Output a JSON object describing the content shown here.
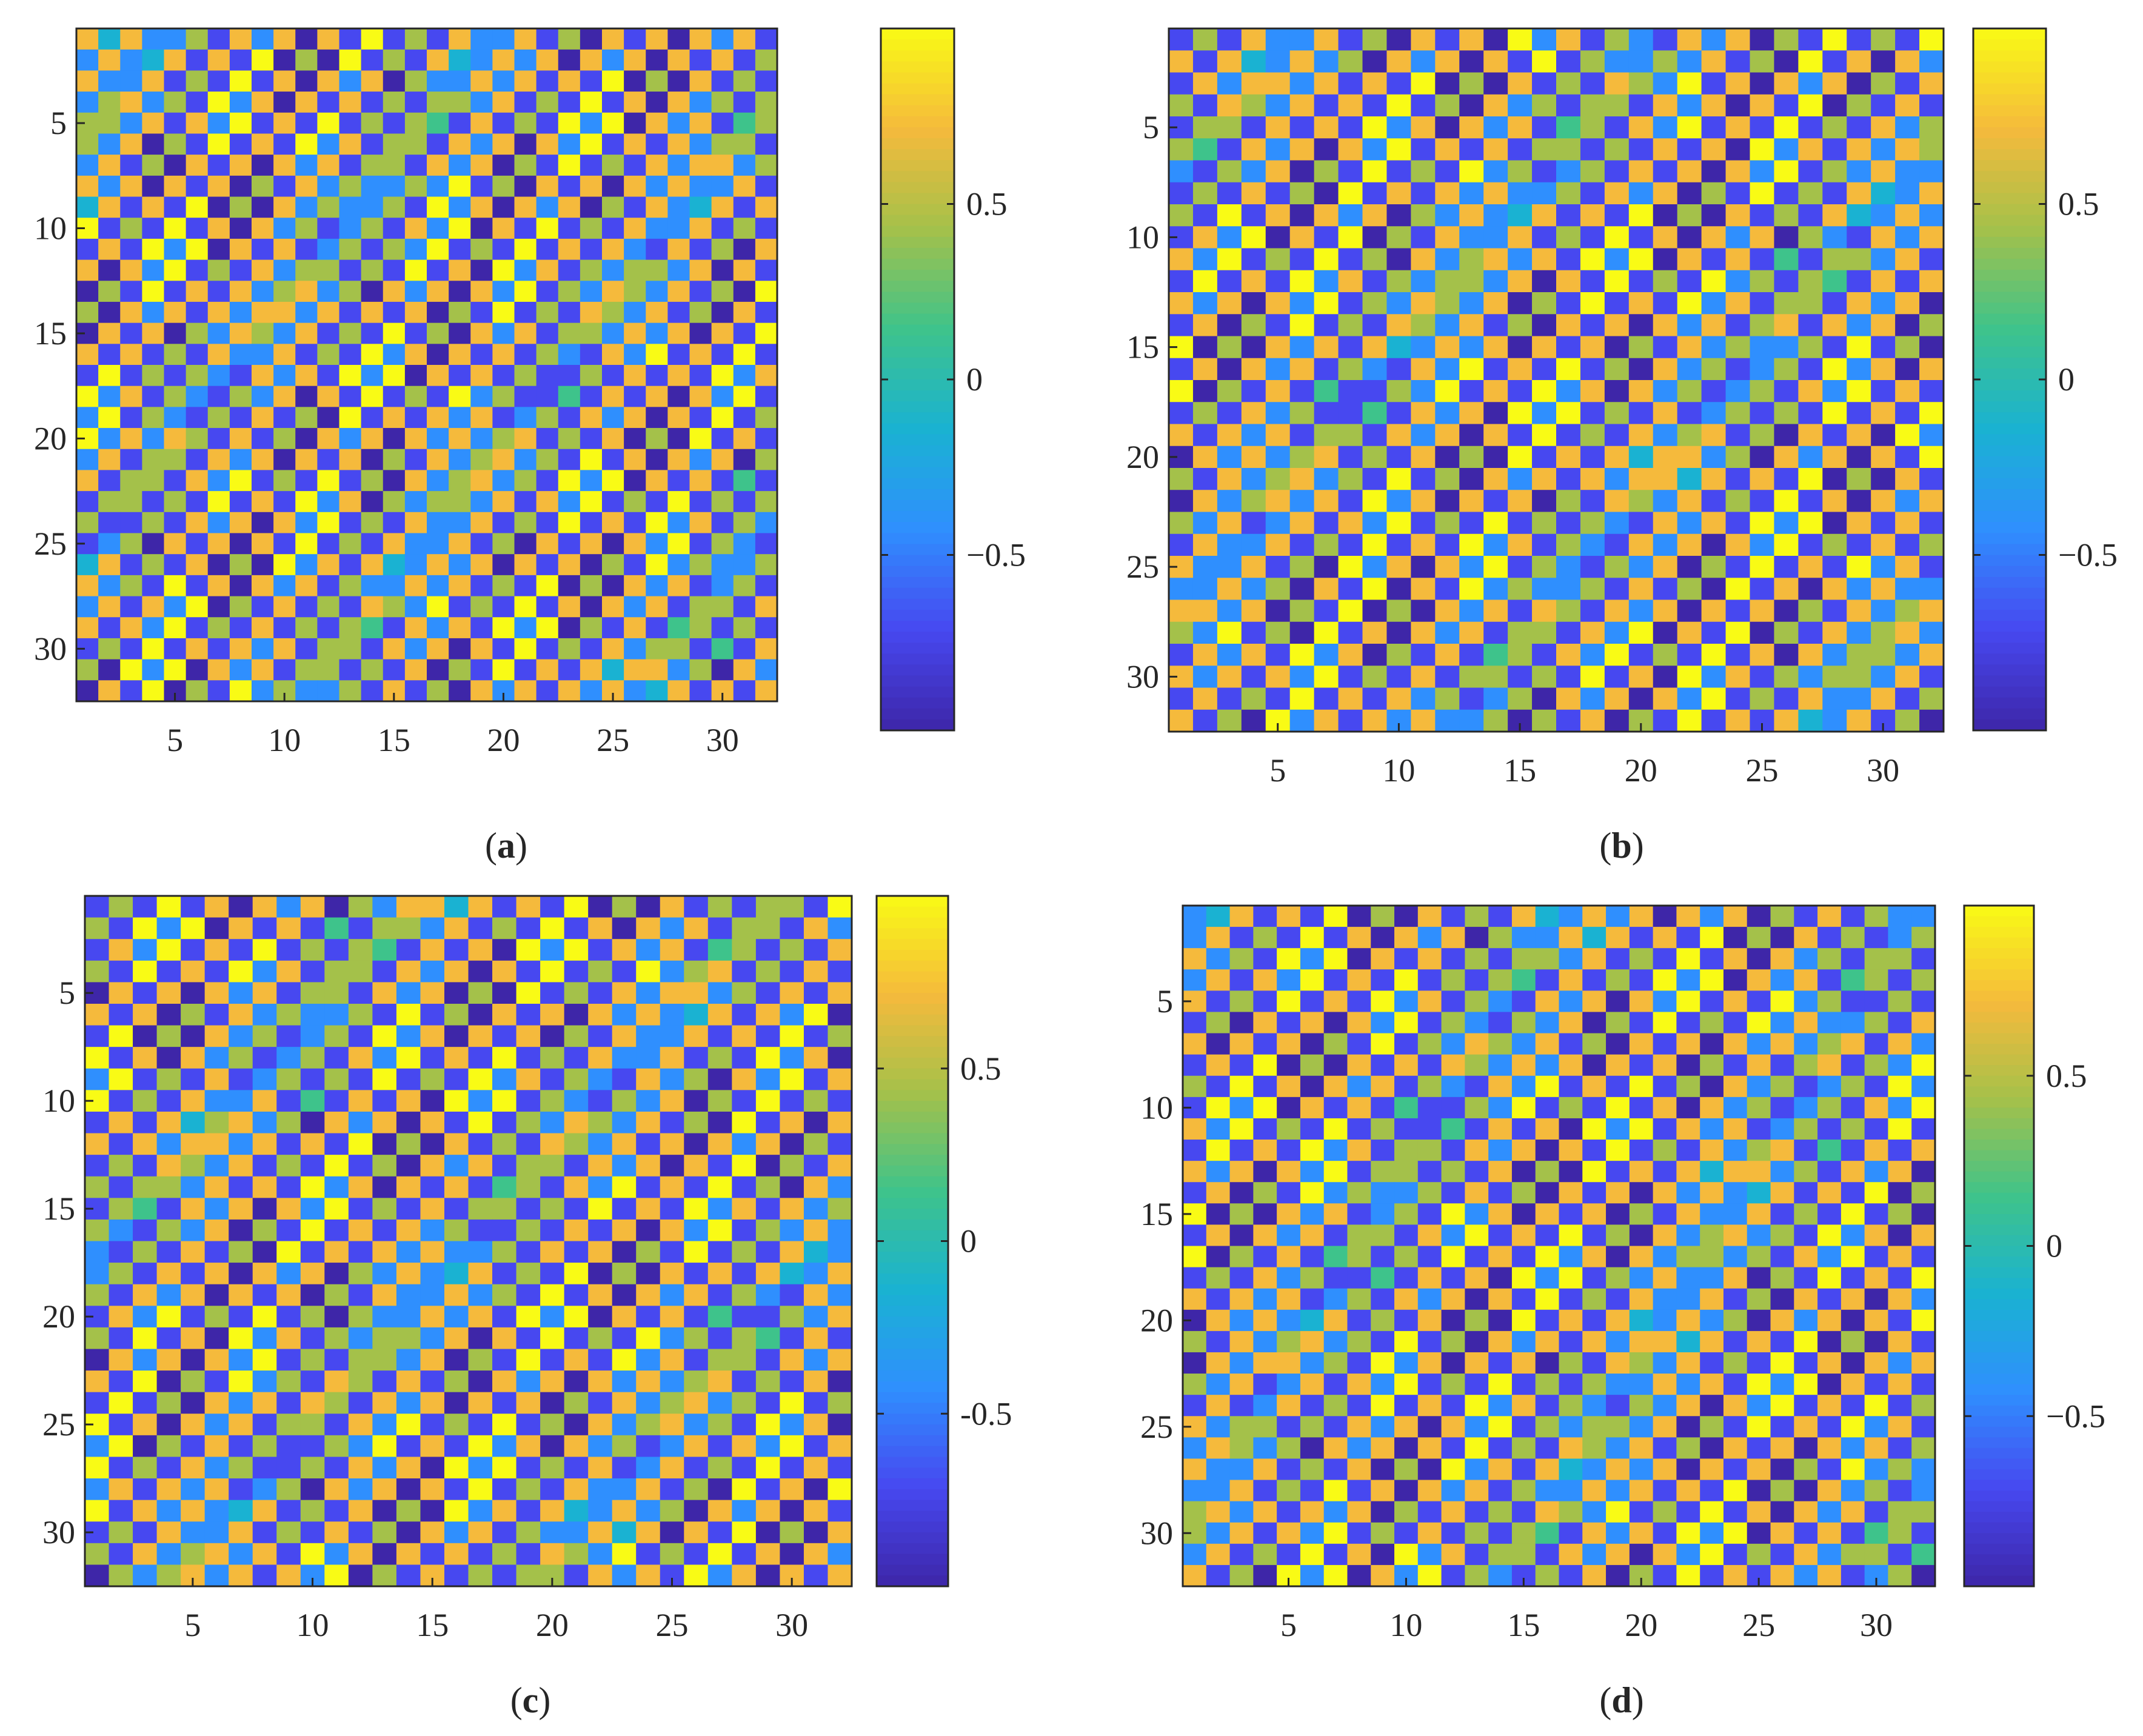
{
  "colors": {
    "colormap": [
      "#3e26a8",
      "#4748f0",
      "#2f8ffe",
      "#1ab2d2",
      "#3ec38b",
      "#a4c14a",
      "#f5ba3c",
      "#f9fb15"
    ],
    "axis": "#262626"
  },
  "chart_data": [
    {
      "panel": "a",
      "label_open": "(",
      "label_letter": "a",
      "label_close": ")",
      "type": "heatmap",
      "title": "",
      "xlabel": "",
      "ylabel": "",
      "xlim": [
        0.5,
        32.5
      ],
      "ylim": [
        0.5,
        32.5
      ],
      "xticks": [
        5,
        10,
        15,
        20,
        25,
        30
      ],
      "yticks": [
        5,
        10,
        15,
        20,
        25,
        30
      ],
      "x_tick_labels": [
        "5",
        "10",
        "15",
        "20",
        "25",
        "30"
      ],
      "y_tick_labels": [
        "5",
        "10",
        "15",
        "20",
        "25",
        "30"
      ],
      "colorbar": {
        "ticks": [
          0.5,
          0,
          -0.5
        ],
        "tick_labels": [
          "0.5",
          "0",
          "−0.5"
        ],
        "range": [
          -1,
          1
        ]
      },
      "grid": false,
      "matrix_size": [
        32,
        32
      ],
      "pattern": {
        "checker_amplitude": 0.85,
        "band_slope": 0.75,
        "band_period": 30,
        "band_phase": 0.5
      }
    },
    {
      "panel": "b",
      "label_open": "(",
      "label_letter": "b",
      "label_close": ")",
      "type": "heatmap",
      "title": "",
      "xlabel": "",
      "ylabel": "",
      "xlim": [
        0.5,
        32.5
      ],
      "ylim": [
        0.5,
        32.5
      ],
      "xticks": [
        5,
        10,
        15,
        20,
        25,
        30
      ],
      "yticks": [
        5,
        10,
        15,
        20,
        25,
        30
      ],
      "x_tick_labels": [
        "5",
        "10",
        "15",
        "20",
        "25",
        "30"
      ],
      "y_tick_labels": [
        "5",
        "10",
        "15",
        "20",
        "25",
        "30"
      ],
      "colorbar": {
        "ticks": [
          0.5,
          0,
          -0.5
        ],
        "tick_labels": [
          "0.5",
          "0",
          "−0.5"
        ],
        "range": [
          -1,
          1
        ]
      },
      "grid": false,
      "matrix_size": [
        32,
        32
      ],
      "pattern": {
        "checker_amplitude": 0.85,
        "band_slope": 0.75,
        "band_period": 30,
        "band_phase": 3.4
      }
    },
    {
      "panel": "c",
      "label_open": "(",
      "label_letter": "c",
      "label_close": ")",
      "type": "heatmap",
      "title": "",
      "xlabel": "",
      "ylabel": "",
      "xlim": [
        0.5,
        32.5
      ],
      "ylim": [
        0.5,
        32.5
      ],
      "xticks": [
        5,
        10,
        15,
        20,
        25,
        30
      ],
      "yticks": [
        5,
        10,
        15,
        20,
        25,
        30
      ],
      "x_tick_labels": [
        "5",
        "10",
        "15",
        "20",
        "25",
        "30"
      ],
      "y_tick_labels": [
        "5",
        "10",
        "15",
        "20",
        "25",
        "30"
      ],
      "colorbar": {
        "ticks": [
          0.5,
          0,
          -0.5
        ],
        "tick_labels": [
          "0.5",
          "0",
          "-0.5"
        ],
        "range": [
          -1,
          1
        ]
      },
      "grid": false,
      "matrix_size": [
        32,
        32
      ],
      "pattern": {
        "checker_amplitude": 0.85,
        "band_slope": 0.8,
        "band_period": 30,
        "band_phase": 1.6
      }
    },
    {
      "panel": "d",
      "label_open": "(",
      "label_letter": "d",
      "label_close": ")",
      "type": "heatmap",
      "title": "",
      "xlabel": "",
      "ylabel": "",
      "xlim": [
        0.5,
        32.5
      ],
      "ylim": [
        0.5,
        32.5
      ],
      "xticks": [
        5,
        10,
        15,
        20,
        25,
        30
      ],
      "yticks": [
        5,
        10,
        15,
        20,
        25,
        30
      ],
      "x_tick_labels": [
        "5",
        "10",
        "15",
        "20",
        "25",
        "30"
      ],
      "y_tick_labels": [
        "5",
        "10",
        "15",
        "20",
        "25",
        "30"
      ],
      "colorbar": {
        "ticks": [
          0.5,
          0,
          -0.5
        ],
        "tick_labels": [
          "0.5",
          "0",
          "−0.5"
        ],
        "range": [
          -1,
          1
        ]
      },
      "grid": false,
      "matrix_size": [
        32,
        32
      ],
      "pattern": {
        "checker_amplitude": 0.85,
        "band_slope": 0.55,
        "band_period": 30,
        "band_phase": 4.3
      }
    }
  ]
}
